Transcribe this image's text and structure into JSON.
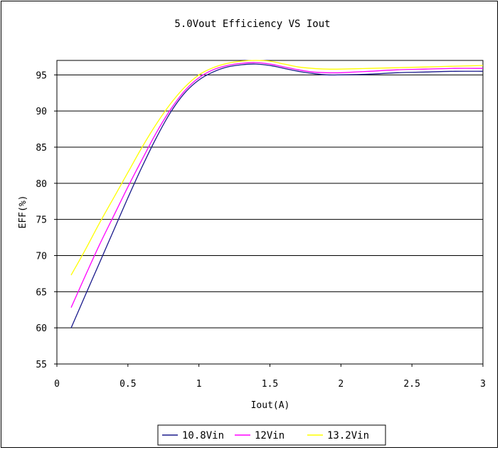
{
  "chart_data": {
    "type": "line",
    "title": "5.0Vout Efficiency VS Iout",
    "xlabel": "Iout(A)",
    "ylabel": "EFF(%)",
    "xlim": [
      0,
      3
    ],
    "ylim": [
      55,
      97
    ],
    "xticks": [
      "0",
      "0.5",
      "1",
      "1.5",
      "2",
      "2.5",
      "3"
    ],
    "yticks": [
      "55",
      "60",
      "65",
      "70",
      "75",
      "80",
      "85",
      "90",
      "95"
    ],
    "grid": "horizontal",
    "legend_position": "bottom",
    "series": [
      {
        "name": "10.8Vin",
        "color": "#1a1a8c",
        "x": [
          0.1,
          0.2,
          0.3,
          0.4,
          0.5,
          0.6,
          0.7,
          0.8,
          0.9,
          1.0,
          1.1,
          1.2,
          1.3,
          1.4,
          1.5,
          1.6,
          1.7,
          1.8,
          1.9,
          2.0,
          2.2,
          2.4,
          2.6,
          2.8,
          3.0
        ],
        "y": [
          60.0,
          64.5,
          69.0,
          73.5,
          78.0,
          82.3,
          86.3,
          89.8,
          92.5,
          94.3,
          95.4,
          96.1,
          96.4,
          96.5,
          96.3,
          95.9,
          95.5,
          95.2,
          95.0,
          95.0,
          95.1,
          95.3,
          95.4,
          95.5,
          95.5
        ]
      },
      {
        "name": "12Vin",
        "color": "#ff00ff",
        "x": [
          0.1,
          0.2,
          0.3,
          0.4,
          0.5,
          0.6,
          0.7,
          0.8,
          0.9,
          1.0,
          1.1,
          1.2,
          1.3,
          1.4,
          1.5,
          1.6,
          1.7,
          1.8,
          1.9,
          2.0,
          2.2,
          2.4,
          2.6,
          2.8,
          3.0
        ],
        "y": [
          62.8,
          67.2,
          71.5,
          75.5,
          79.5,
          83.3,
          87.0,
          90.2,
          92.8,
          94.6,
          95.7,
          96.3,
          96.6,
          96.7,
          96.5,
          96.1,
          95.7,
          95.4,
          95.3,
          95.3,
          95.5,
          95.7,
          95.8,
          95.9,
          95.9
        ]
      },
      {
        "name": "13.2Vin",
        "color": "#ffff00",
        "x": [
          0.1,
          0.2,
          0.3,
          0.4,
          0.5,
          0.6,
          0.7,
          0.8,
          0.9,
          1.0,
          1.1,
          1.2,
          1.3,
          1.4,
          1.5,
          1.6,
          1.7,
          1.8,
          1.9,
          2.0,
          2.2,
          2.4,
          2.6,
          2.8,
          3.0
        ],
        "y": [
          67.3,
          70.8,
          74.5,
          78.0,
          81.5,
          85.0,
          88.2,
          91.0,
          93.3,
          95.0,
          96.0,
          96.6,
          96.9,
          97.0,
          96.9,
          96.5,
          96.1,
          95.9,
          95.8,
          95.8,
          95.9,
          96.0,
          96.1,
          96.2,
          96.3
        ]
      }
    ]
  }
}
